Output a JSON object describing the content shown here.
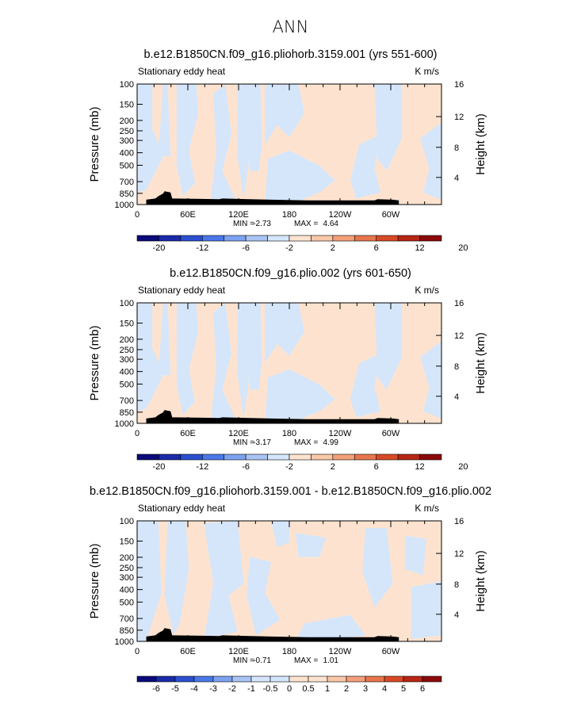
{
  "page_title": "ANN",
  "colors": {
    "cold": [
      "#0a0a7a",
      "#1a2aa8",
      "#2b4fd0",
      "#4a78e8",
      "#7da2f0",
      "#a9c4f4",
      "#d5e6fb"
    ],
    "warm": [
      "#fde3cf",
      "#f9c8a8",
      "#f2a07a",
      "#e8764d",
      "#d84a26",
      "#b82614",
      "#8b0a0a"
    ],
    "land": "#000000"
  },
  "chart_data": [
    {
      "type": "heatmap",
      "title": "b.e12.B1850CN.f09_g16.pliohorb.3159.001 (yrs 551-600)",
      "left_label": "Stationary eddy heat",
      "right_label": "K m/s",
      "xlabel": "",
      "ylabel": "Pressure (mb)",
      "y2label": "Height (km)",
      "x_ticks": [
        "0",
        "60E",
        "120E",
        "180",
        "120W",
        "60W"
      ],
      "y_ticks": [
        "100",
        "150",
        "200",
        "250",
        "300",
        "400",
        "500",
        "700",
        "850",
        "1000"
      ],
      "y2_ticks": [
        "4",
        "8",
        "12",
        "16"
      ],
      "stats": {
        "min_label": "MIN =",
        "min": "-2.73",
        "max_label": "MAX =",
        "max": "4.64"
      },
      "colorbar": {
        "labels": [
          "-20",
          "-12",
          "-6",
          "-2",
          "2",
          "6",
          "12",
          "20"
        ]
      }
    },
    {
      "type": "heatmap",
      "title": "b.e12.B1850CN.f09_g16.plio.002 (yrs 601-650)",
      "left_label": "Stationary eddy heat",
      "right_label": "K m/s",
      "xlabel": "",
      "ylabel": "Pressure (mb)",
      "y2label": "Height (km)",
      "x_ticks": [
        "0",
        "60E",
        "120E",
        "180",
        "120W",
        "60W"
      ],
      "y_ticks": [
        "100",
        "150",
        "200",
        "250",
        "300",
        "400",
        "500",
        "700",
        "850",
        "1000"
      ],
      "y2_ticks": [
        "4",
        "8",
        "12",
        "16"
      ],
      "stats": {
        "min_label": "MIN =",
        "min": "-3.17",
        "max_label": "MAX =",
        "max": "4.99"
      },
      "colorbar": {
        "labels": [
          "-20",
          "-12",
          "-6",
          "-2",
          "2",
          "6",
          "12",
          "20"
        ]
      }
    },
    {
      "type": "heatmap",
      "title": "b.e12.B1850CN.f09_g16.pliohorb.3159.001 - b.e12.B1850CN.f09_g16.plio.002",
      "left_label": "Stationary eddy heat",
      "right_label": "K m/s",
      "xlabel": "",
      "ylabel": "Pressure (mb)",
      "y2label": "Height (km)",
      "x_ticks": [
        "0",
        "60E",
        "120E",
        "180",
        "120W",
        "60W"
      ],
      "y_ticks": [
        "100",
        "150",
        "200",
        "250",
        "300",
        "400",
        "500",
        "700",
        "850",
        "1000"
      ],
      "y2_ticks": [
        "4",
        "8",
        "12",
        "16"
      ],
      "stats": {
        "min_label": "MIN =",
        "min": "-0.71",
        "max_label": "MAX =",
        "max": "1.01"
      },
      "colorbar": {
        "labels": [
          "-6",
          "-5",
          "-4",
          "-3",
          "-2",
          "-1",
          "-0.5",
          "0",
          "0.5",
          "1",
          "2",
          "3",
          "4",
          "5",
          "6"
        ]
      }
    }
  ]
}
